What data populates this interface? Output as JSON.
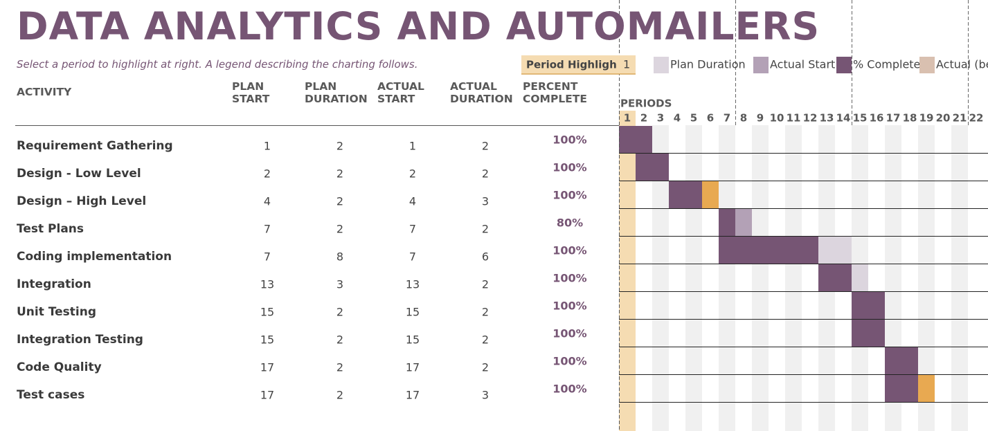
{
  "title": "DATA ANALYTICS AND AUTOMAILERS",
  "subtitle": "Select a period to highlight at right.  A legend describing the charting follows.",
  "period_highlight": {
    "label": "Period Highligh",
    "value": 1
  },
  "legend": [
    {
      "label": "Plan Duration",
      "color": "#dcd5de"
    },
    {
      "label": "Actual Start",
      "color": "#b3a1b6"
    },
    {
      "label": "% Complete",
      "color": "#765574"
    },
    {
      "label": "Actual (be",
      "color": "#d9c0b0"
    }
  ],
  "overrun_color": "#e8a951",
  "highlight_color": "#f5dcb2",
  "columns": [
    "ACTIVITY",
    "PLAN START",
    "PLAN DURATION",
    "ACTUAL START",
    "ACTUAL DURATION",
    "PERCENT COMPLETE"
  ],
  "periods_label": "PERIODS",
  "periods": [
    1,
    2,
    3,
    4,
    5,
    6,
    7,
    8,
    9,
    10,
    11,
    12,
    13,
    14,
    15,
    16,
    17,
    18,
    19,
    20,
    21,
    22
  ],
  "rows": [
    {
      "activity": "Requirement Gathering",
      "plan_start": 1,
      "plan_duration": 2,
      "actual_start": 1,
      "actual_duration": 2,
      "percent_complete": 100,
      "percent_label": "100%"
    },
    {
      "activity": "Design - Low Level",
      "plan_start": 2,
      "plan_duration": 2,
      "actual_start": 2,
      "actual_duration": 2,
      "percent_complete": 100,
      "percent_label": "100%"
    },
    {
      "activity": "Design – High Level",
      "plan_start": 4,
      "plan_duration": 2,
      "actual_start": 4,
      "actual_duration": 3,
      "percent_complete": 100,
      "percent_label": "100%"
    },
    {
      "activity": "Test Plans",
      "plan_start": 7,
      "plan_duration": 2,
      "actual_start": 7,
      "actual_duration": 2,
      "percent_complete": 80,
      "percent_label": "80%"
    },
    {
      "activity": "Coding implementation",
      "plan_start": 7,
      "plan_duration": 8,
      "actual_start": 7,
      "actual_duration": 6,
      "percent_complete": 100,
      "percent_label": "100%"
    },
    {
      "activity": "Integration",
      "plan_start": 13,
      "plan_duration": 3,
      "actual_start": 13,
      "actual_duration": 2,
      "percent_complete": 100,
      "percent_label": "100%"
    },
    {
      "activity": "Unit Testing",
      "plan_start": 15,
      "plan_duration": 2,
      "actual_start": 15,
      "actual_duration": 2,
      "percent_complete": 100,
      "percent_label": "100%"
    },
    {
      "activity": "Integration Testing",
      "plan_start": 15,
      "plan_duration": 2,
      "actual_start": 15,
      "actual_duration": 2,
      "percent_complete": 100,
      "percent_label": "100%"
    },
    {
      "activity": "Code Quality",
      "plan_start": 17,
      "plan_duration": 2,
      "actual_start": 17,
      "actual_duration": 2,
      "percent_complete": 100,
      "percent_label": "100%"
    },
    {
      "activity": "Test cases",
      "plan_start": 17,
      "plan_duration": 2,
      "actual_start": 17,
      "actual_duration": 3,
      "percent_complete": 100,
      "percent_label": "100%"
    }
  ]
}
